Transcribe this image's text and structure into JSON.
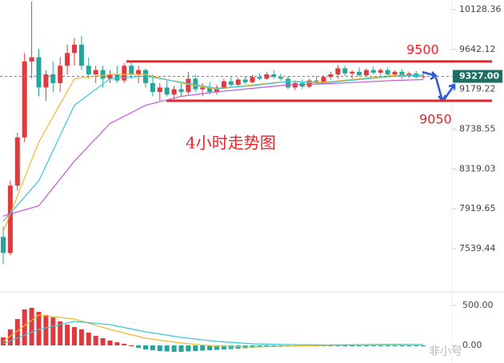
{
  "chart_data": {
    "type": "candlestick",
    "title": "4小时走势图",
    "log": true,
    "ylim": [
      7184,
      10249
    ],
    "yticks": [
      10128.36,
      9642.12,
      9179.22,
      8738.55,
      8319.03,
      7919.65,
      7539.44
    ],
    "up_color": "#e0393e",
    "down_color": "#26a69a",
    "current_price": {
      "value": 9327,
      "label": "9327.00"
    },
    "levels": [
      9500,
      9050
    ],
    "level_color": "#e8252b",
    "ohlc": [
      [
        7650,
        7750,
        7400,
        7500
      ],
      [
        7500,
        8200,
        7480,
        8150
      ],
      [
        8150,
        8700,
        8100,
        8650
      ],
      [
        8650,
        9600,
        8600,
        9500
      ],
      [
        9500,
        10230,
        9300,
        9550
      ],
      [
        9550,
        9650,
        9100,
        9200
      ],
      [
        9200,
        9400,
        9050,
        9350
      ],
      [
        9350,
        9500,
        9150,
        9250
      ],
      [
        9250,
        9550,
        9150,
        9450
      ],
      [
        9450,
        9700,
        9350,
        9600
      ],
      [
        9600,
        9780,
        9450,
        9700
      ],
      [
        9700,
        9800,
        9400,
        9450
      ],
      [
        9450,
        9550,
        9300,
        9350
      ],
      [
        9350,
        9450,
        9250,
        9400
      ],
      [
        9400,
        9450,
        9200,
        9300
      ],
      [
        9300,
        9400,
        9250,
        9350
      ],
      [
        9350,
        9450,
        9250,
        9280
      ],
      [
        9280,
        9480,
        9250,
        9450
      ],
      [
        9450,
        9500,
        9300,
        9350
      ],
      [
        9350,
        9450,
        9250,
        9400
      ],
      [
        9400,
        9420,
        9200,
        9250
      ],
      [
        9250,
        9350,
        9100,
        9150
      ],
      [
        9150,
        9250,
        9050,
        9200
      ],
      [
        9200,
        9280,
        9100,
        9120
      ],
      [
        9120,
        9220,
        9050,
        9180
      ],
      [
        9180,
        9260,
        9100,
        9150
      ],
      [
        9150,
        9380,
        9120,
        9300
      ],
      [
        9300,
        9350,
        9150,
        9180
      ],
      [
        9180,
        9250,
        9100,
        9200
      ],
      [
        9200,
        9260,
        9120,
        9150
      ],
      [
        9150,
        9230,
        9120,
        9200
      ],
      [
        9200,
        9300,
        9180,
        9270
      ],
      [
        9270,
        9320,
        9200,
        9230
      ],
      [
        9230,
        9310,
        9200,
        9290
      ],
      [
        9290,
        9330,
        9240,
        9260
      ],
      [
        9260,
        9340,
        9250,
        9320
      ],
      [
        9320,
        9360,
        9280,
        9300
      ],
      [
        9300,
        9380,
        9290,
        9350
      ],
      [
        9350,
        9400,
        9300,
        9320
      ],
      [
        9320,
        9360,
        9280,
        9300
      ],
      [
        9300,
        9330,
        9180,
        9200
      ],
      [
        9200,
        9280,
        9170,
        9250
      ],
      [
        9250,
        9290,
        9180,
        9210
      ],
      [
        9210,
        9300,
        9190,
        9280
      ],
      [
        9280,
        9330,
        9230,
        9250
      ],
      [
        9250,
        9340,
        9240,
        9320
      ],
      [
        9320,
        9380,
        9290,
        9350
      ],
      [
        9350,
        9460,
        9300,
        9420
      ],
      [
        9420,
        9450,
        9330,
        9360
      ],
      [
        9360,
        9400,
        9300,
        9380
      ],
      [
        9380,
        9430,
        9320,
        9340
      ],
      [
        9340,
        9420,
        9320,
        9400
      ],
      [
        9400,
        9440,
        9350,
        9370
      ],
      [
        9370,
        9420,
        9340,
        9400
      ],
      [
        9400,
        9430,
        9330,
        9350
      ],
      [
        9350,
        9400,
        9320,
        9380
      ],
      [
        9380,
        9410,
        9300,
        9330
      ],
      [
        9330,
        9380,
        9310,
        9360
      ],
      [
        9360,
        9390,
        9300,
        9320
      ],
      [
        9320,
        9360,
        9300,
        9327
      ]
    ],
    "line_index": [
      0,
      5,
      10,
      15,
      20,
      25,
      30,
      35,
      40,
      45,
      50,
      55,
      59
    ],
    "series": [
      {
        "color": "#f5b82e",
        "values": [
          7700,
          8600,
          9300,
          9350,
          9350,
          9250,
          9180,
          9230,
          9270,
          9260,
          9300,
          9340,
          9340
        ]
      },
      {
        "color": "#3cc6d6",
        "values": [
          7800,
          8200,
          9000,
          9300,
          9330,
          9260,
          9190,
          9220,
          9270,
          9250,
          9290,
          9330,
          9340
        ]
      },
      {
        "color": "#c45bd6",
        "values": [
          7850,
          7950,
          8400,
          8800,
          9000,
          9100,
          9150,
          9190,
          9230,
          9240,
          9260,
          9280,
          9290
        ]
      }
    ],
    "macd": {
      "ylim": [
        -180,
        670
      ],
      "yticks": [
        {
          "value": 500,
          "label": "500.00"
        },
        {
          "value": 0,
          "label": "0.00"
        }
      ],
      "histogram": [
        100,
        200,
        330,
        450,
        470,
        420,
        380,
        350,
        300,
        260,
        230,
        200,
        160,
        120,
        90,
        60,
        40,
        20,
        0,
        -30,
        -50,
        -60,
        -70,
        -75,
        -80,
        -80,
        -75,
        -70,
        -65,
        -60,
        -55,
        -50,
        -45,
        -40,
        -35,
        -30,
        -25,
        -20,
        -15,
        -10,
        -8,
        -6,
        -5,
        -5,
        -6,
        -8,
        -10,
        -10,
        -8,
        -6,
        -5,
        -3,
        -2,
        -2,
        -3,
        -4,
        -4,
        -3,
        -2,
        -2
      ],
      "series": [
        {
          "color": "#f5b82e",
          "values": [
            50,
            380,
            330,
            200,
            90,
            30,
            -10,
            -20,
            -10,
            0,
            10,
            15,
            10
          ]
        },
        {
          "color": "#3cc6d6",
          "values": [
            20,
            200,
            300,
            260,
            170,
            100,
            50,
            20,
            10,
            5,
            8,
            10,
            10
          ]
        }
      ]
    },
    "watermark": "非小号"
  }
}
